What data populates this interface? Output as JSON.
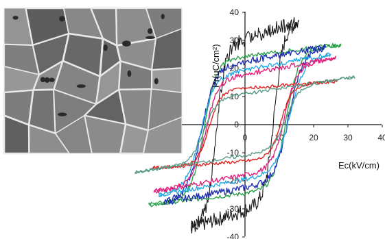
{
  "chart_data": {
    "type": "line",
    "title": "",
    "xlabel": "Ec(kV/cm)",
    "ylabel": "Pr(uC/cm²)",
    "xlim": [
      -10,
      40
    ],
    "ylim": [
      -40,
      40
    ],
    "x_ticks": [
      "0",
      "10",
      "20",
      "30",
      "40"
    ],
    "y_ticks": [
      "-40",
      "-30",
      "-20",
      "-10",
      "0",
      "10",
      "20",
      "30",
      "40"
    ],
    "grid": false,
    "legend": "none",
    "inset": "SEM micrograph of grain microstructure (top-left)",
    "series": [
      {
        "color": "#1a1a1a",
        "Emax": 15.7,
        "Pmax": 36.5,
        "Pr": 30.5,
        "Ec": 8.5,
        "noise": 2.6
      },
      {
        "color": "#2aa04a",
        "Emax": 28.0,
        "Pmax": 28.5,
        "Pr": 24.5,
        "Ec": 12.0,
        "noise": 0.8
      },
      {
        "color": "#1f2fb0",
        "Emax": 23.5,
        "Pmax": 27.5,
        "Pr": 22.5,
        "Ec": 12.8,
        "noise": 1.2
      },
      {
        "color": "#24a8e6",
        "Emax": 25.0,
        "Pmax": 25.0,
        "Pr": 19.5,
        "Ec": 13.0,
        "noise": 0.8
      },
      {
        "color": "#e0207a",
        "Emax": 26.5,
        "Pmax": 23.8,
        "Pr": 18.0,
        "Ec": 11.5,
        "noise": 0.9
      },
      {
        "color": "#e02020",
        "Emax": 27.0,
        "Pmax": 15.5,
        "Pr": 13.0,
        "Ec": 10.5,
        "noise": 0.6
      },
      {
        "color": "#5a9a88",
        "Emax": 32.0,
        "Pmax": 17.0,
        "Pr": 11.0,
        "Ec": 12.0,
        "noise": 0.6
      }
    ]
  }
}
